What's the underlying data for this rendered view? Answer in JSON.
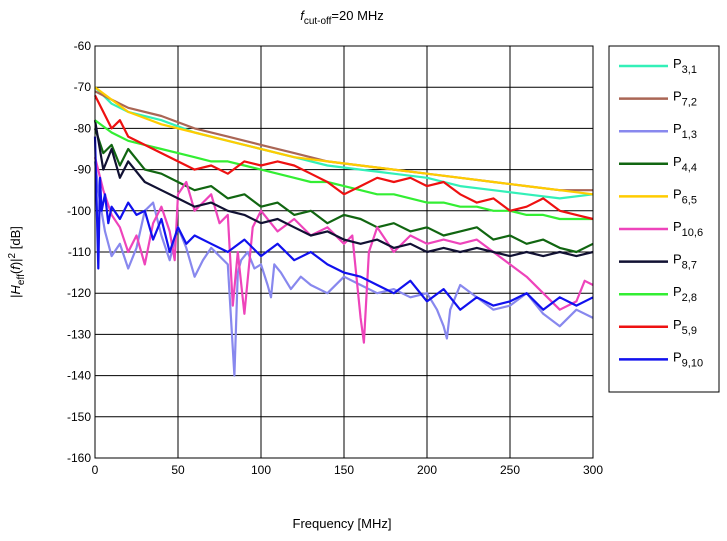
{
  "chart_data": {
    "type": "line",
    "title_parts": {
      "f": "f",
      "sub": "cut-off",
      "rest": "=20 MHz"
    },
    "xlabel": "Frequency [MHz]",
    "ylabel_parts": {
      "open": "|",
      "H": "H",
      "Hsub": "eff",
      "paren_open": "(",
      "f": "f",
      "paren_close": ")|",
      "sup": "2",
      "unit": " [dB]"
    },
    "xlim": [
      0,
      300
    ],
    "ylim": [
      -160,
      -60
    ],
    "x_ticks": [
      0,
      50,
      100,
      150,
      200,
      250,
      300
    ],
    "y_ticks": [
      -160,
      -150,
      -140,
      -130,
      -120,
      -110,
      -100,
      -90,
      -80,
      -70,
      -60
    ],
    "grid": true,
    "legend_position": "outside-right",
    "series": [
      {
        "name": "P",
        "sub": "3,1",
        "color": "#33f0b8",
        "x": [
          0,
          10,
          20,
          40,
          60,
          80,
          100,
          120,
          140,
          160,
          180,
          200,
          220,
          240,
          260,
          280,
          300
        ],
        "y": [
          -70,
          -74,
          -76,
          -78,
          -81,
          -83,
          -85,
          -87,
          -89,
          -90,
          -91,
          -92,
          -94,
          -95,
          -96,
          -97,
          -96
        ]
      },
      {
        "name": "P",
        "sub": "7,2",
        "color": "#aa6655",
        "x": [
          0,
          10,
          20,
          40,
          60,
          80,
          100,
          120,
          140,
          160,
          180,
          200,
          220,
          240,
          260,
          280,
          300
        ],
        "y": [
          -71,
          -73,
          -75,
          -77,
          -80,
          -82,
          -84,
          -86,
          -88,
          -89,
          -90,
          -91,
          -92,
          -93,
          -94,
          -95,
          -95
        ]
      },
      {
        "name": "P",
        "sub": "1,3",
        "color": "#8888ee",
        "x": [
          0,
          3,
          6,
          10,
          15,
          20,
          25,
          30,
          35,
          40,
          45,
          50,
          55,
          60,
          65,
          70,
          75,
          80,
          84,
          86,
          88,
          92,
          96,
          100,
          104,
          106,
          108,
          112,
          118,
          124,
          130,
          140,
          150,
          160,
          170,
          180,
          190,
          200,
          206,
          210,
          212,
          214,
          220,
          230,
          240,
          250,
          260,
          270,
          280,
          290,
          300
        ],
        "y": [
          -88,
          -98,
          -105,
          -111,
          -108,
          -114,
          -109,
          -100,
          -98,
          -106,
          -112,
          -104,
          -109,
          -116,
          -112,
          -109,
          -111,
          -113,
          -140,
          -115,
          -112,
          -110,
          -114,
          -113,
          -118,
          -121,
          -113,
          -115,
          -119,
          -116,
          -118,
          -120,
          -116,
          -118,
          -120,
          -119,
          -121,
          -120,
          -124,
          -128,
          -131,
          -124,
          -118,
          -121,
          -124,
          -123,
          -120,
          -125,
          -128,
          -124,
          -126
        ]
      },
      {
        "name": "P",
        "sub": "4,4",
        "color": "#116611",
        "x": [
          0,
          5,
          10,
          15,
          20,
          30,
          40,
          50,
          60,
          70,
          80,
          90,
          100,
          110,
          120,
          130,
          140,
          150,
          160,
          170,
          180,
          190,
          200,
          210,
          220,
          230,
          240,
          250,
          260,
          270,
          280,
          290,
          300
        ],
        "y": [
          -80,
          -86,
          -84,
          -89,
          -85,
          -90,
          -91,
          -93,
          -95,
          -94,
          -97,
          -96,
          -99,
          -98,
          -101,
          -100,
          -103,
          -101,
          -102,
          -104,
          -103,
          -105,
          -104,
          -106,
          -105,
          -104,
          -107,
          -106,
          -108,
          -107,
          -109,
          -110,
          -108
        ]
      },
      {
        "name": "P",
        "sub": "6,5",
        "color": "#ffcc00",
        "x": [
          0,
          10,
          20,
          40,
          60,
          80,
          100,
          120,
          140,
          160,
          180,
          200,
          220,
          240,
          260,
          280,
          300
        ],
        "y": [
          -70,
          -73,
          -76,
          -79,
          -81,
          -83,
          -85,
          -87,
          -88,
          -89,
          -90,
          -91,
          -92,
          -93,
          -94,
          -95,
          -96
        ]
      },
      {
        "name": "P",
        "sub": "10,6",
        "color": "#ee44bb",
        "x": [
          0,
          5,
          10,
          15,
          20,
          25,
          30,
          35,
          40,
          45,
          48,
          50,
          55,
          60,
          65,
          70,
          75,
          80,
          83,
          86,
          90,
          95,
          100,
          110,
          120,
          130,
          140,
          150,
          155,
          160,
          162,
          165,
          170,
          180,
          190,
          200,
          210,
          220,
          230,
          240,
          250,
          260,
          270,
          280,
          290,
          295,
          300
        ],
        "y": [
          -87,
          -95,
          -101,
          -104,
          -110,
          -106,
          -113,
          -103,
          -99,
          -105,
          -112,
          -96,
          -93,
          -100,
          -98,
          -96,
          -103,
          -101,
          -123,
          -110,
          -125,
          -104,
          -100,
          -105,
          -102,
          -106,
          -104,
          -108,
          -106,
          -126,
          -132,
          -110,
          -104,
          -110,
          -106,
          -108,
          -107,
          -108,
          -107,
          -110,
          -113,
          -116,
          -120,
          -124,
          -122,
          -117,
          -118
        ]
      },
      {
        "name": "P",
        "sub": "8,7",
        "color": "#111133",
        "x": [
          0,
          5,
          10,
          15,
          20,
          30,
          40,
          50,
          60,
          70,
          80,
          90,
          100,
          110,
          120,
          130,
          140,
          150,
          160,
          170,
          180,
          190,
          200,
          210,
          220,
          230,
          240,
          250,
          260,
          270,
          280,
          290,
          300
        ],
        "y": [
          -78,
          -90,
          -85,
          -92,
          -88,
          -93,
          -95,
          -97,
          -99,
          -98,
          -100,
          -101,
          -103,
          -102,
          -104,
          -106,
          -105,
          -107,
          -108,
          -107,
          -109,
          -108,
          -110,
          -109,
          -110,
          -109,
          -110,
          -111,
          -110,
          -111,
          -110,
          -111,
          -110
        ]
      },
      {
        "name": "P",
        "sub": "2,8",
        "color": "#33ee33",
        "x": [
          0,
          10,
          20,
          30,
          40,
          50,
          60,
          70,
          80,
          90,
          100,
          110,
          120,
          130,
          140,
          150,
          160,
          170,
          180,
          190,
          200,
          210,
          220,
          230,
          240,
          250,
          260,
          270,
          280,
          290,
          300
        ],
        "y": [
          -78,
          -81,
          -83,
          -84,
          -85,
          -86,
          -87,
          -88,
          -88,
          -89,
          -90,
          -91,
          -92,
          -93,
          -93,
          -94,
          -95,
          -96,
          -96,
          -97,
          -98,
          -98,
          -99,
          -99,
          -100,
          -100,
          -101,
          -101,
          -102,
          -102,
          -102
        ]
      },
      {
        "name": "P",
        "sub": "5,9",
        "color": "#ee1111",
        "x": [
          0,
          5,
          10,
          15,
          20,
          30,
          40,
          50,
          60,
          70,
          80,
          90,
          100,
          110,
          120,
          130,
          140,
          150,
          160,
          170,
          180,
          190,
          200,
          210,
          220,
          230,
          240,
          250,
          260,
          270,
          280,
          290,
          300
        ],
        "y": [
          -72,
          -76,
          -80,
          -78,
          -82,
          -84,
          -86,
          -88,
          -90,
          -89,
          -91,
          -88,
          -89,
          -88,
          -89,
          -91,
          -93,
          -96,
          -94,
          -92,
          -93,
          -92,
          -94,
          -93,
          -96,
          -98,
          -97,
          -100,
          -99,
          -97,
          -100,
          -101,
          -102
        ]
      },
      {
        "name": "P",
        "sub": "9,10",
        "color": "#1111ee",
        "x": [
          0,
          2,
          3,
          4,
          6,
          8,
          10,
          15,
          20,
          25,
          30,
          35,
          40,
          45,
          50,
          55,
          60,
          70,
          80,
          90,
          100,
          110,
          120,
          130,
          140,
          150,
          160,
          170,
          180,
          190,
          200,
          210,
          220,
          230,
          240,
          250,
          260,
          270,
          280,
          290,
          300
        ],
        "y": [
          -82,
          -114,
          -92,
          -100,
          -96,
          -103,
          -99,
          -102,
          -98,
          -101,
          -100,
          -107,
          -102,
          -110,
          -104,
          -108,
          -106,
          -108,
          -110,
          -107,
          -111,
          -108,
          -112,
          -110,
          -113,
          -115,
          -116,
          -118,
          -120,
          -117,
          -122,
          -119,
          -124,
          -121,
          -123,
          -122,
          -120,
          -124,
          -121,
          -123,
          -121
        ]
      }
    ]
  }
}
